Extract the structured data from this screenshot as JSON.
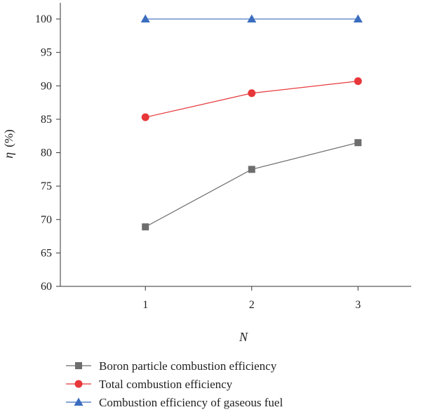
{
  "chart_data": {
    "type": "line",
    "x": [
      1,
      2,
      3
    ],
    "x_ticks": [
      "1",
      "2",
      "3"
    ],
    "xlim": [
      0.2,
      3.5
    ],
    "ylim": [
      60,
      102
    ],
    "y_ticks": [
      "60",
      "65",
      "70",
      "75",
      "80",
      "85",
      "90",
      "95",
      "100"
    ],
    "xlabel": "N",
    "ylabel_symbol": "η",
    "ylabel_unit": "(%)",
    "grid": false,
    "legend_position": "bottom",
    "series": [
      {
        "name": "Boron particle combustion efficiency",
        "marker": "square",
        "color": "#6d6d6d",
        "values": [
          68.9,
          77.5,
          81.5
        ]
      },
      {
        "name": "Total combustion efficiency",
        "marker": "circle",
        "color": "#e8373a",
        "values": [
          85.3,
          88.9,
          90.7
        ]
      },
      {
        "name": "Combustion efficiency of gaseous fuel",
        "marker": "triangle",
        "color": "#3b6dbf",
        "values": [
          100,
          100,
          100
        ]
      }
    ]
  }
}
